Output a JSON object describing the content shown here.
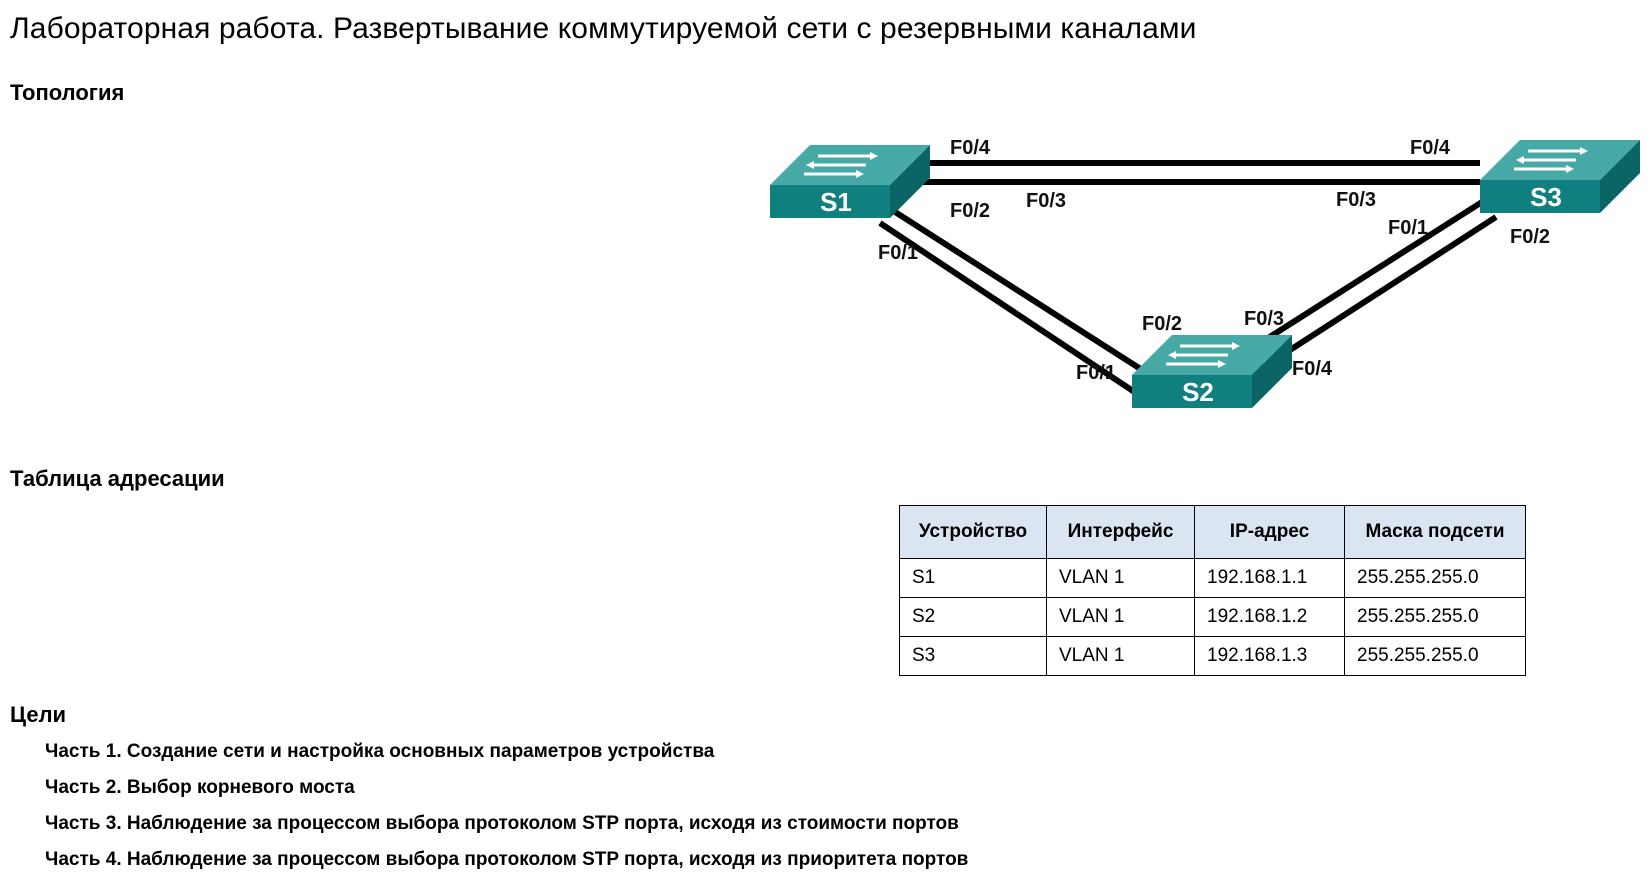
{
  "document": {
    "title": "Лабораторная работа. Развертывание коммутируемой сети с резервными каналами"
  },
  "topology": {
    "heading": "Топология",
    "switches": [
      {
        "id": "s1",
        "label": "S1"
      },
      {
        "id": "s2",
        "label": "S2"
      },
      {
        "id": "s3",
        "label": "S3"
      }
    ],
    "port_labels": {
      "s1_f04": "F0/4",
      "s1_f03": "F0/3",
      "s1_f02": "F0/2",
      "s1_f01": "F0/1",
      "s3_f04": "F0/4",
      "s3_f03": "F0/3",
      "s3_f01": "F0/1",
      "s3_f02": "F0/2",
      "s2_f02": "F0/2",
      "s2_f01": "F0/1",
      "s2_f03": "F0/3",
      "s2_f04": "F0/4"
    },
    "colors": {
      "switch_front": "#0f7f7f",
      "switch_top": "#47a9a6",
      "switch_side": "#0b6464",
      "link": "#000000"
    }
  },
  "addressing": {
    "heading": "Таблица адресации",
    "columns": [
      "Устройство",
      "Интерфейс",
      "IP-адрес",
      "Маска подсети"
    ],
    "rows": [
      [
        "S1",
        "VLAN 1",
        "192.168.1.1",
        "255.255.255.0"
      ],
      [
        "S2",
        "VLAN 1",
        "192.168.1.2",
        "255.255.255.0"
      ],
      [
        "S3",
        "VLAN 1",
        "192.168.1.3",
        "255.255.255.0"
      ]
    ],
    "header_color": "#dbe4f1"
  },
  "objectives": {
    "heading": "Цели",
    "items": [
      "Часть 1. Создание сети и настройка основных параметров устройства",
      "Часть 2. Выбор корневого моста",
      "Часть 3. Наблюдение за процессом выбора протоколом STP порта, исходя из стоимости портов",
      "Часть 4. Наблюдение за процессом выбора протоколом STP порта, исходя из приоритета портов"
    ]
  }
}
